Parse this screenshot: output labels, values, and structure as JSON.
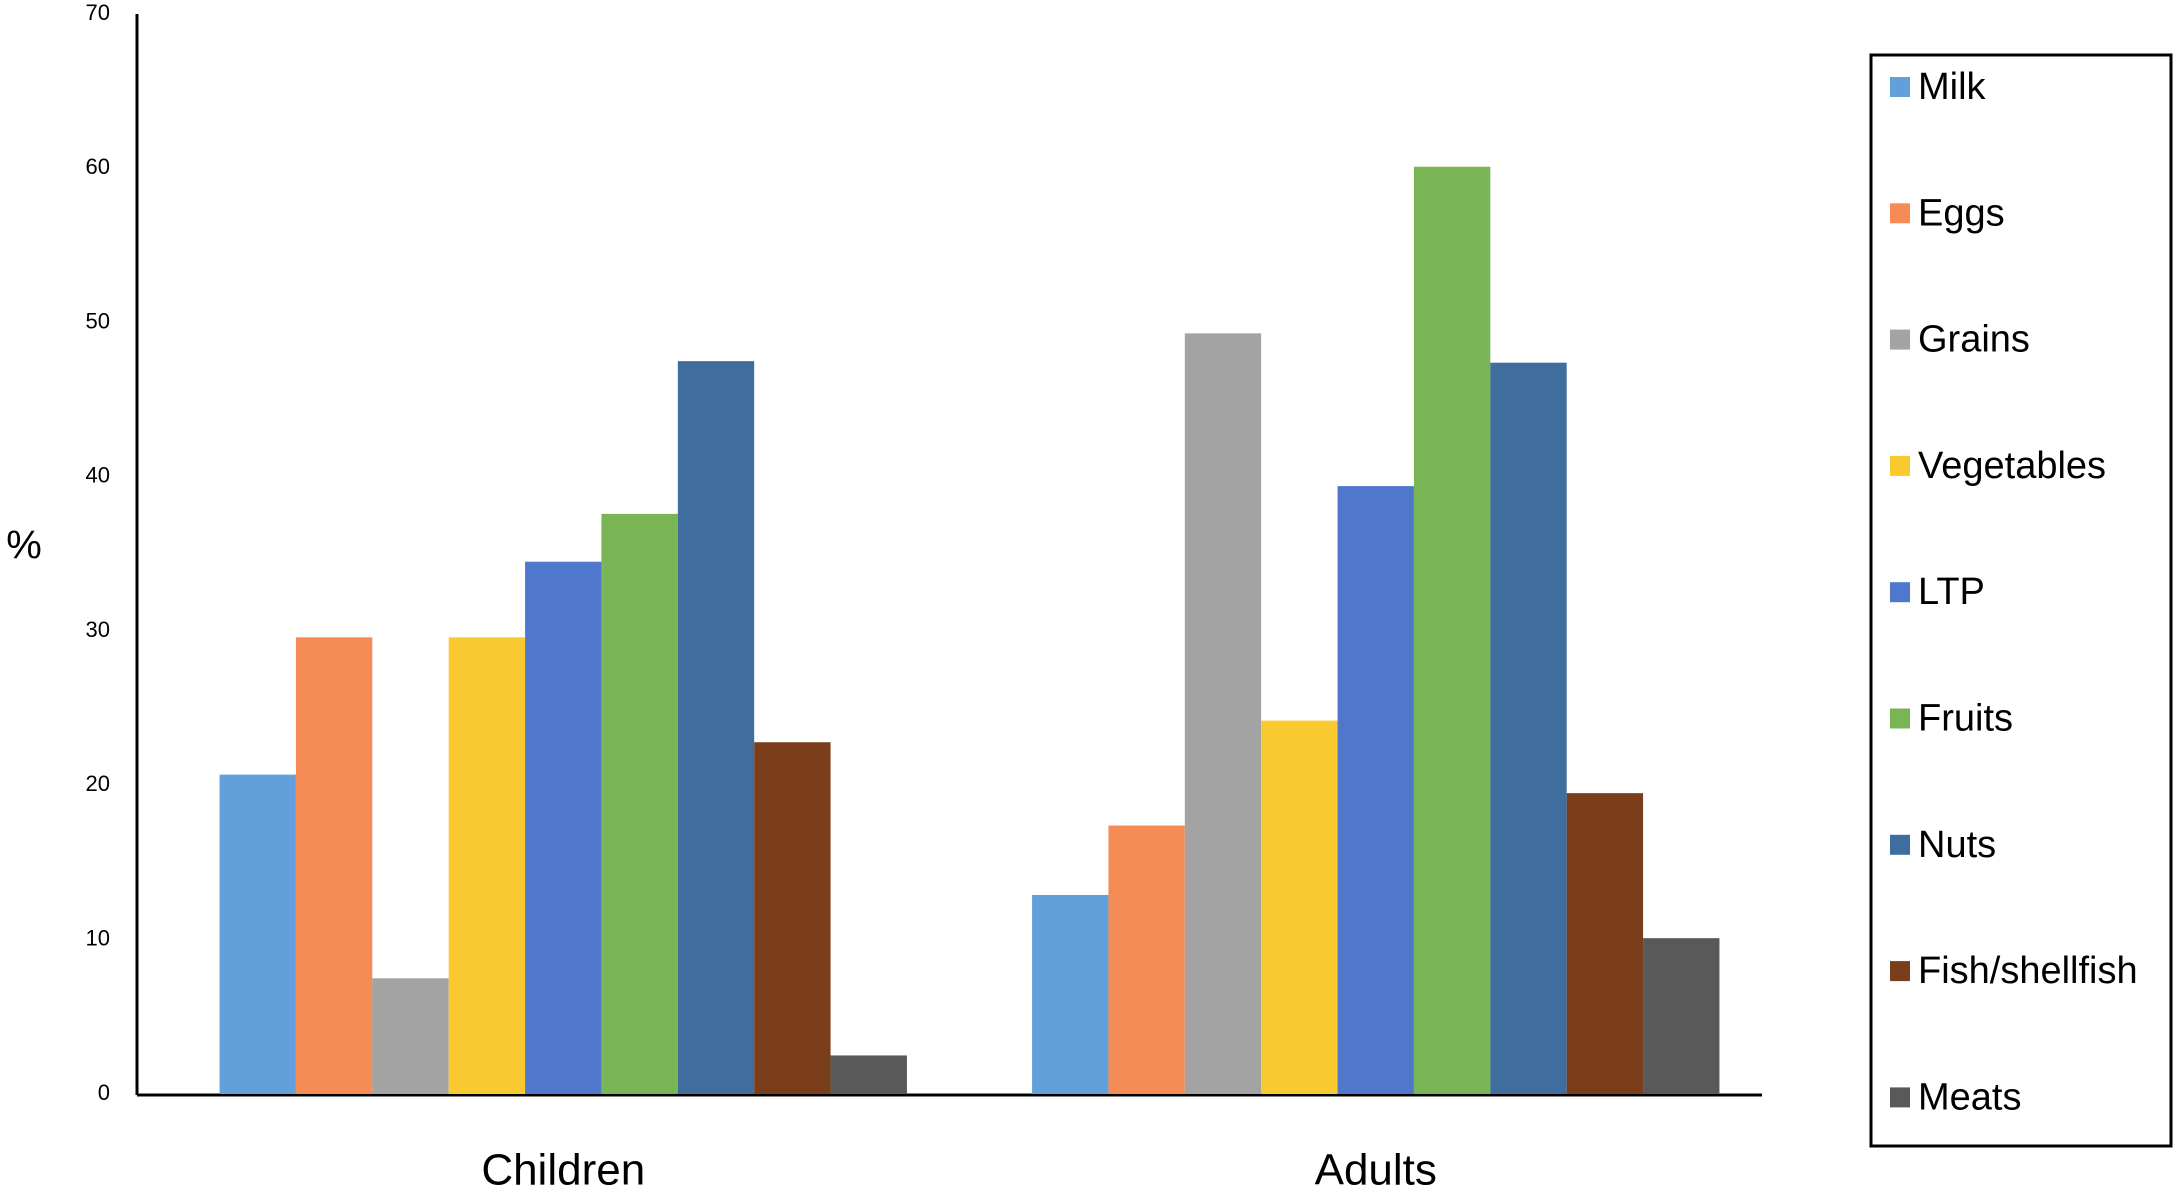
{
  "chart_data": {
    "type": "bar",
    "y_label": "%",
    "categories": [
      "Children",
      "Adults"
    ],
    "series": [
      {
        "name": "Milk",
        "color": "#62a0db",
        "values": [
          20.7,
          12.9
        ]
      },
      {
        "name": "Eggs",
        "color": "#f58b55",
        "values": [
          29.6,
          17.4
        ]
      },
      {
        "name": "Grains",
        "color": "#a3a3a3",
        "values": [
          7.5,
          49.3
        ]
      },
      {
        "name": "Vegetables",
        "color": "#f9c930",
        "values": [
          29.6,
          24.2
        ]
      },
      {
        "name": "LTP",
        "color": "#4f78cc",
        "values": [
          34.5,
          39.4
        ]
      },
      {
        "name": "Fruits",
        "color": "#7ab555",
        "values": [
          37.6,
          60.1
        ]
      },
      {
        "name": "Nuts",
        "color": "#3f6d9e",
        "values": [
          47.5,
          47.4
        ]
      },
      {
        "name": "Fish/shellfish",
        "color": "#7a3f1a",
        "values": [
          22.8,
          19.5
        ]
      },
      {
        "name": "Meats",
        "color": "#595959",
        "values": [
          2.5,
          10.1
        ]
      }
    ],
    "ylim": [
      0,
      70
    ],
    "yticks": [
      0,
      10,
      20,
      30,
      40,
      50,
      60,
      70
    ],
    "grid": false,
    "legend": "right"
  }
}
